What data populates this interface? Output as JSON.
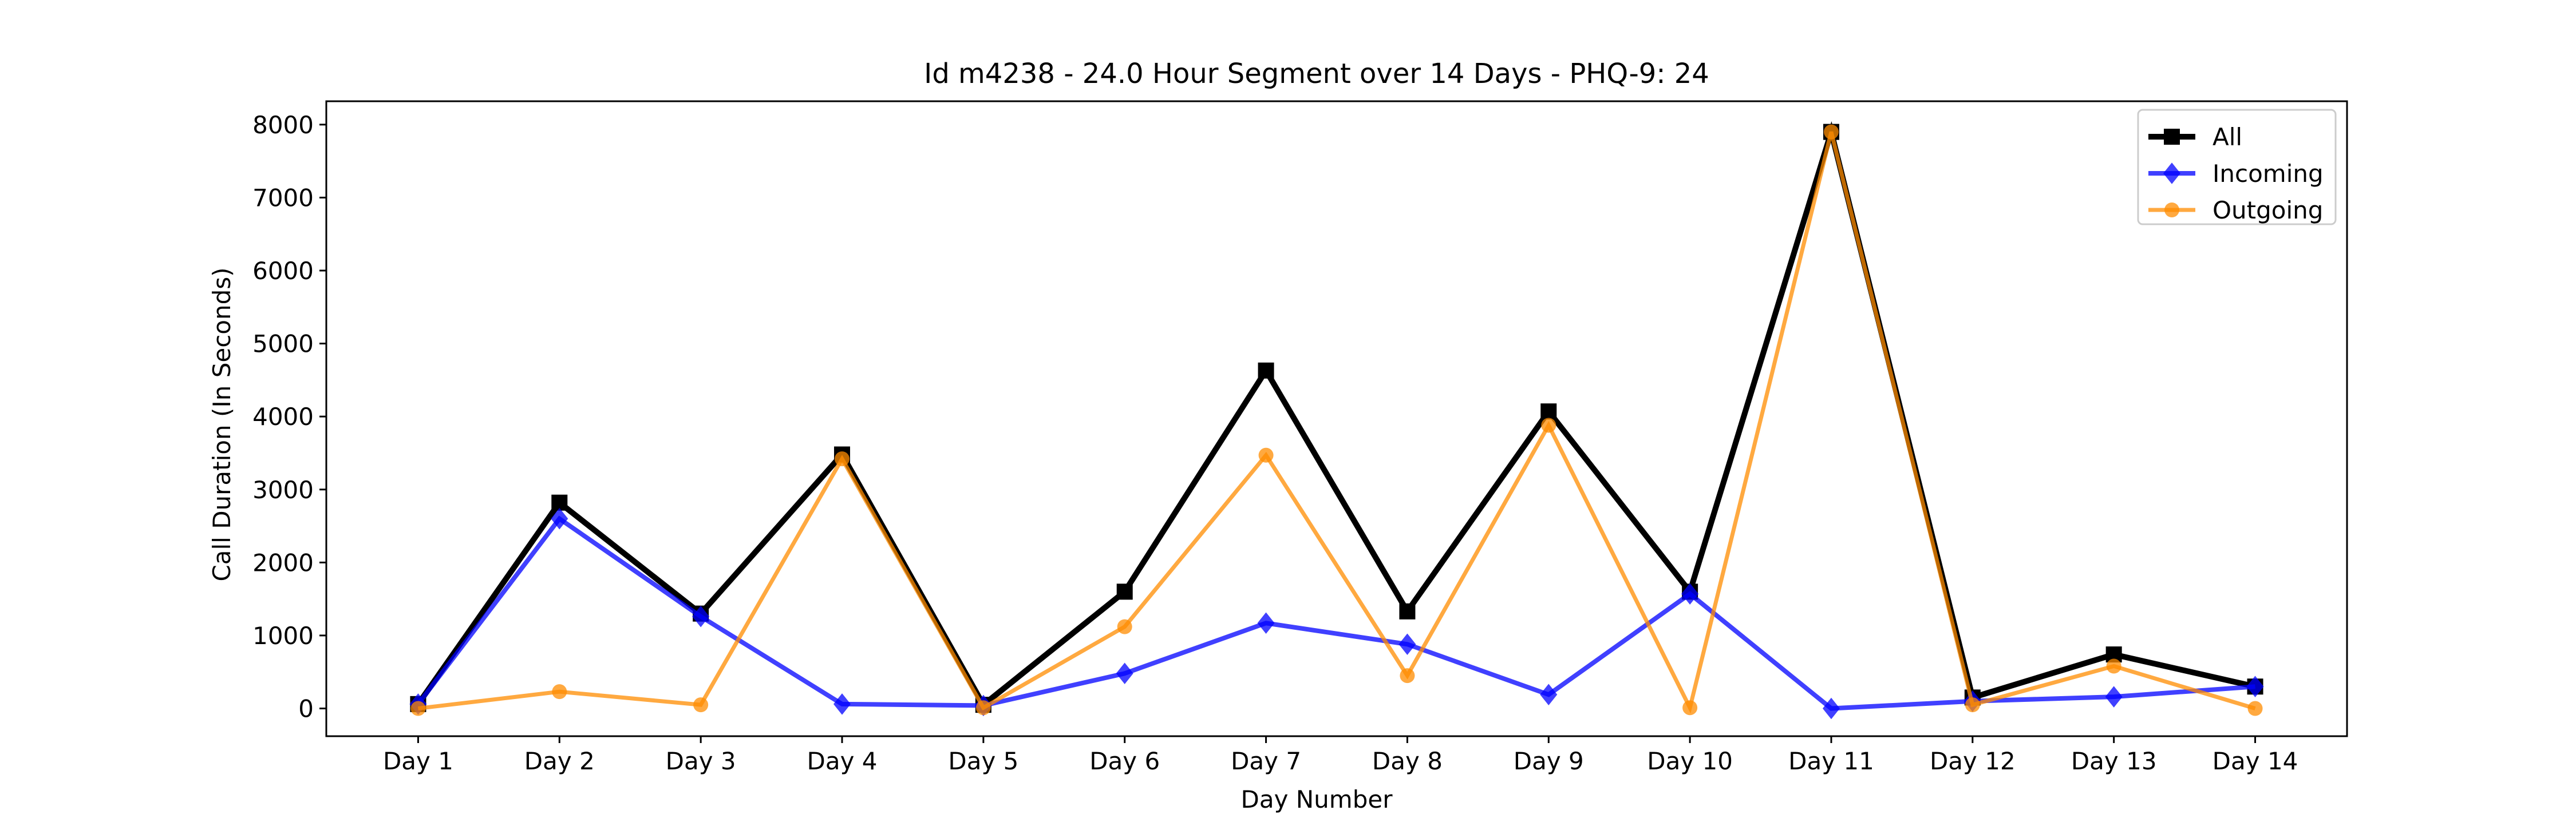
{
  "chart_data": {
    "type": "line",
    "title": "Id m4238 - 24.0 Hour Segment over 14 Days - PHQ-9: 24",
    "xlabel": "Day Number",
    "ylabel": "Call Duration (In Seconds)",
    "categories": [
      "Day 1",
      "Day 2",
      "Day 3",
      "Day 4",
      "Day 5",
      "Day 6",
      "Day 7",
      "Day 8",
      "Day 9",
      "Day 10",
      "Day 11",
      "Day 12",
      "Day 13",
      "Day 14"
    ],
    "ylim": [
      -380,
      8320
    ],
    "yticks": [
      0,
      1000,
      2000,
      3000,
      4000,
      5000,
      6000,
      7000,
      8000
    ],
    "grid": false,
    "legend_position": "top-right",
    "series": [
      {
        "name": "All",
        "color": "#000000",
        "marker": "square",
        "values": [
          60,
          2820,
          1300,
          3480,
          50,
          1600,
          4630,
          1330,
          4070,
          1600,
          7900,
          150,
          740,
          300
        ]
      },
      {
        "name": "Incoming",
        "color": "#0000ff",
        "marker": "diamond",
        "values": [
          60,
          2600,
          1260,
          60,
          40,
          480,
          1170,
          880,
          190,
          1570,
          0,
          100,
          160,
          300
        ]
      },
      {
        "name": "Outgoing",
        "color": "#ff8c00",
        "marker": "circle",
        "values": [
          0,
          230,
          50,
          3420,
          10,
          1120,
          3470,
          450,
          3880,
          10,
          7900,
          50,
          580,
          0
        ]
      }
    ]
  }
}
